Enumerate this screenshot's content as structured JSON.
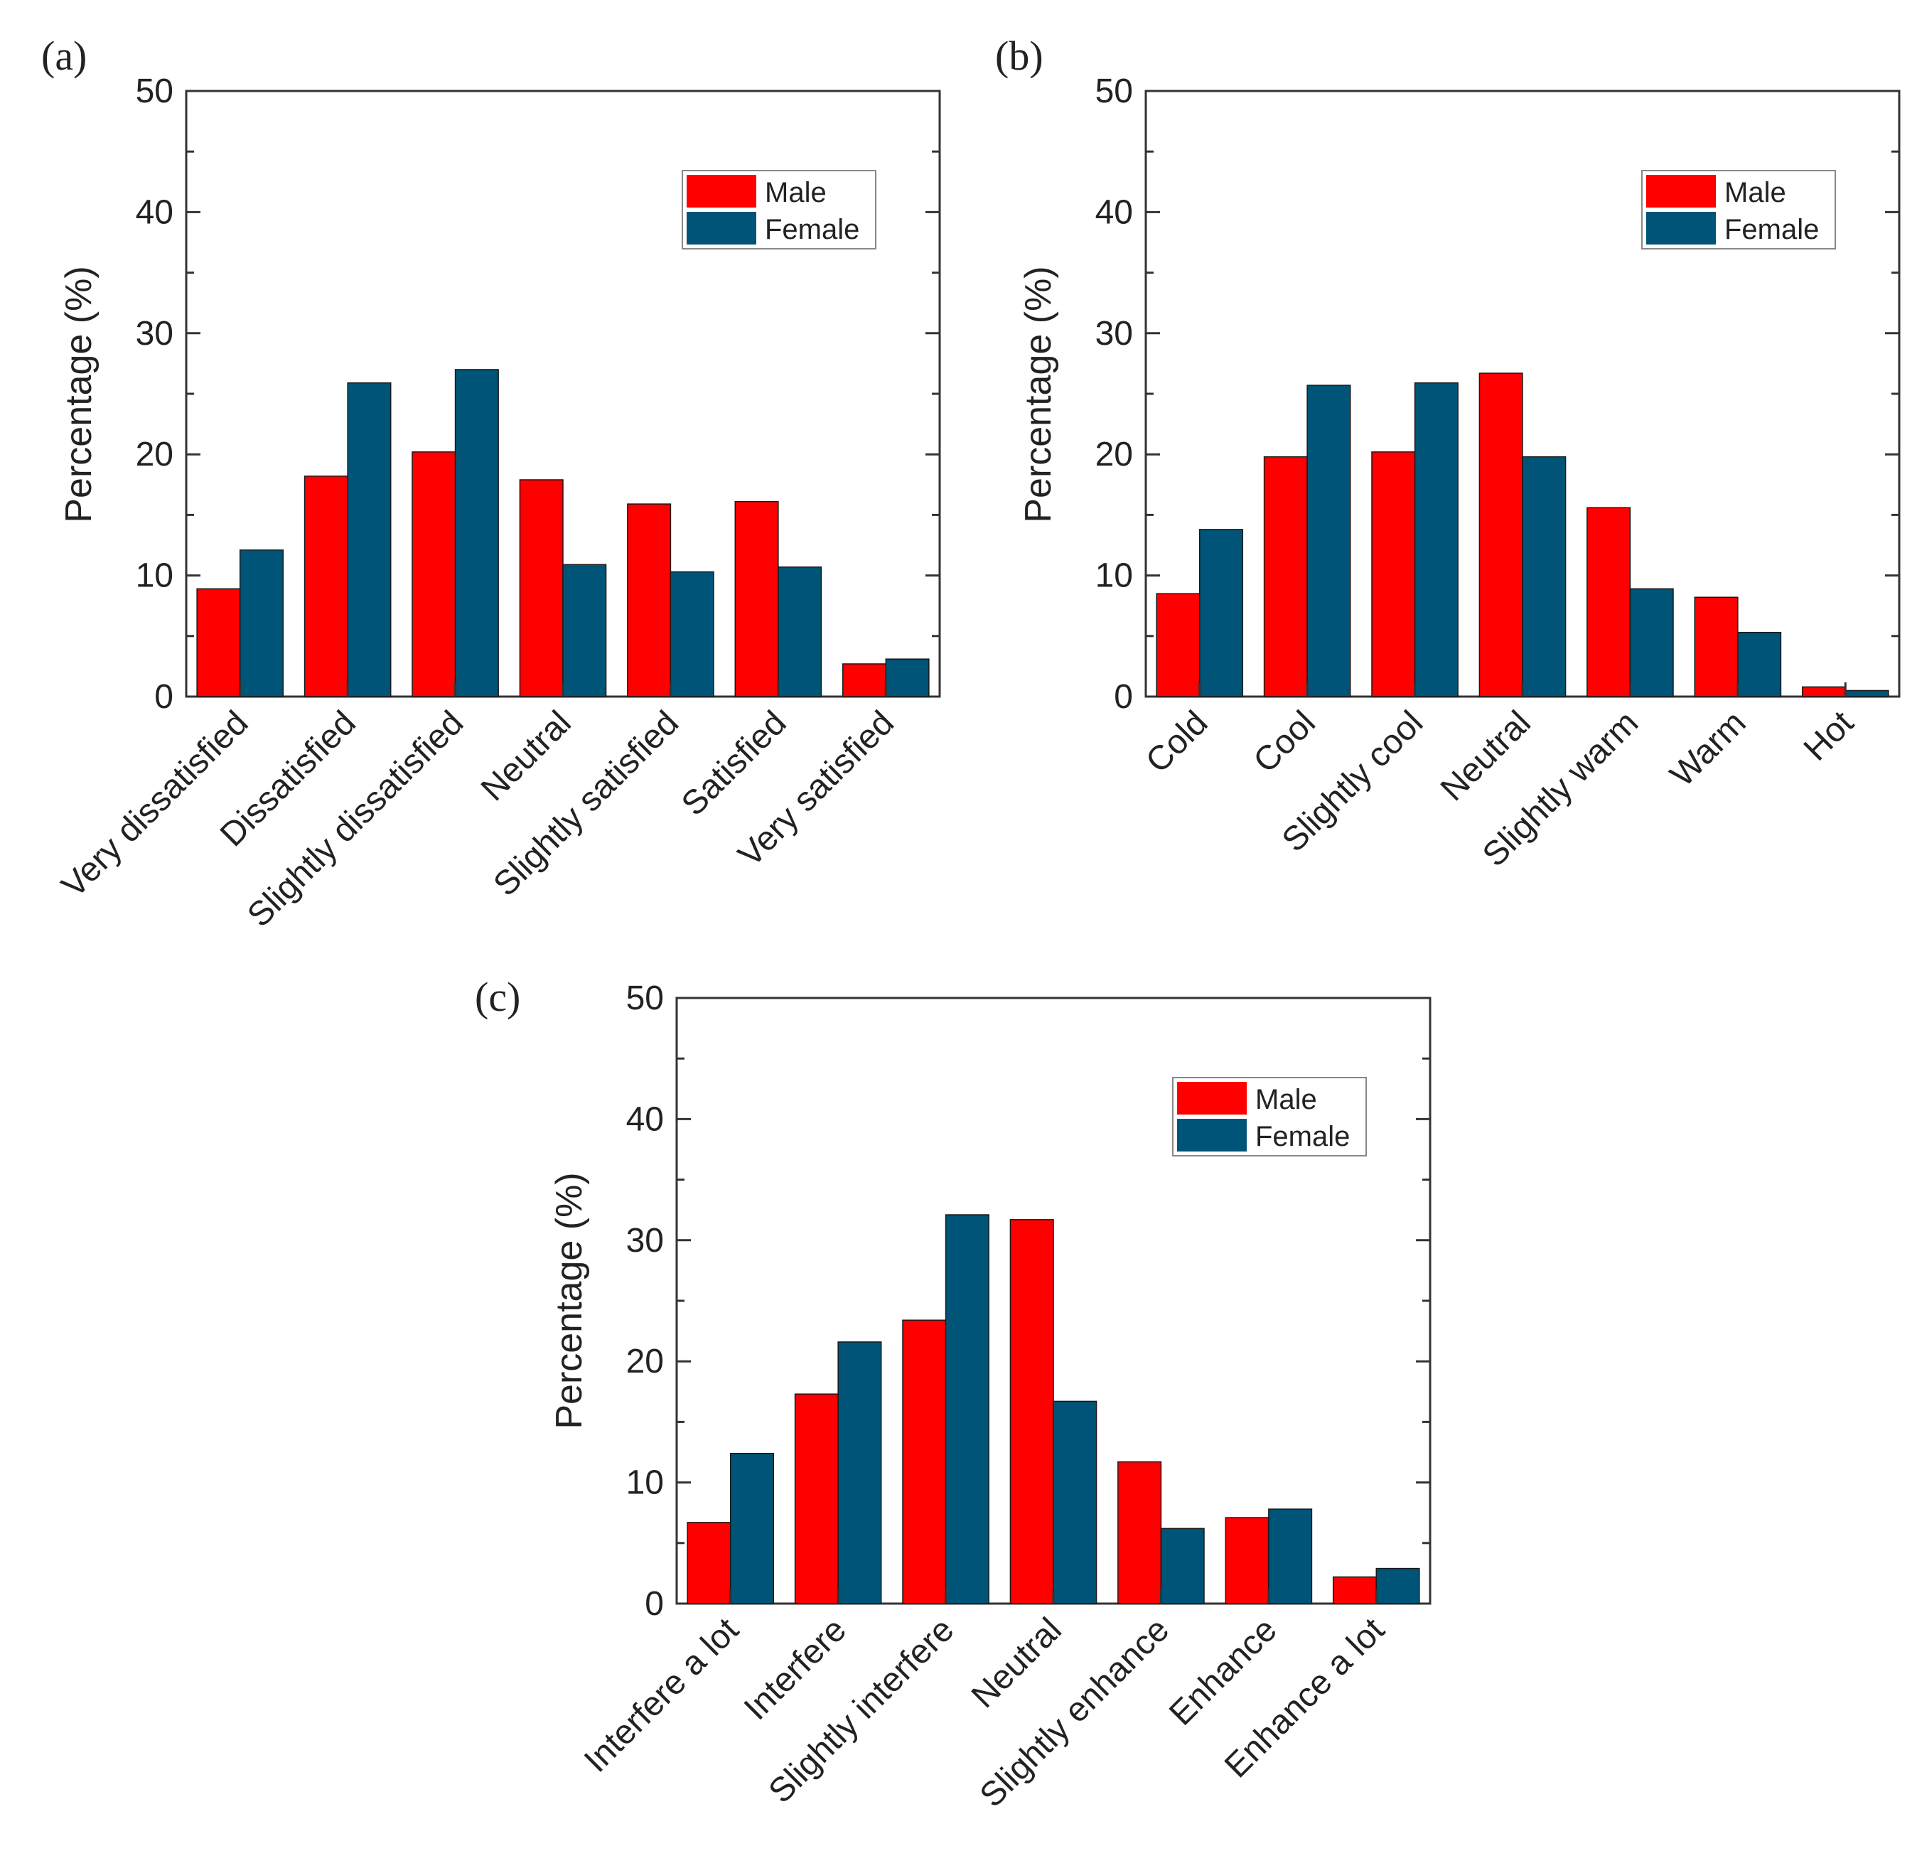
{
  "colors": {
    "male": "#ff0000",
    "female": "#005477",
    "axis": "#333333"
  },
  "chart_data": [
    {
      "id": "a",
      "type": "bar",
      "panel_label": "(a)",
      "ylabel": "Percentage (%)",
      "ylim": [
        0,
        50
      ],
      "yticks": [
        0,
        10,
        20,
        30,
        40,
        50
      ],
      "legend_position": "top-right",
      "categories": [
        "Very dissatisfied",
        "Dissatisfied",
        "Slightly dissatisfied",
        "Neutral",
        "Slightly satisfied",
        "Satisfied",
        "Very satisfied"
      ],
      "series": [
        {
          "name": "Male",
          "values": [
            8.9,
            18.2,
            20.2,
            17.9,
            15.9,
            16.1,
            2.7
          ]
        },
        {
          "name": "Female",
          "values": [
            12.1,
            25.9,
            27.0,
            10.9,
            10.3,
            10.7,
            3.1
          ]
        }
      ]
    },
    {
      "id": "b",
      "type": "bar",
      "panel_label": "(b)",
      "ylabel": "Percentage (%)",
      "ylim": [
        0,
        50
      ],
      "yticks": [
        0,
        10,
        20,
        30,
        40,
        50
      ],
      "legend_position": "top-right",
      "categories": [
        "Cold",
        "Cool",
        "Slightly cool",
        "Neutral",
        "Slightly warm",
        "Warm",
        "Hot"
      ],
      "series": [
        {
          "name": "Male",
          "values": [
            8.5,
            19.8,
            20.2,
            26.7,
            15.6,
            8.2,
            0.8
          ]
        },
        {
          "name": "Female",
          "values": [
            13.8,
            25.7,
            25.9,
            19.8,
            8.9,
            5.3,
            0.5
          ]
        }
      ]
    },
    {
      "id": "c",
      "type": "bar",
      "panel_label": "(c)",
      "ylabel": "Percentage (%)",
      "ylim": [
        0,
        50
      ],
      "yticks": [
        0,
        10,
        20,
        30,
        40,
        50
      ],
      "legend_position": "top-right",
      "categories": [
        "Interfere a lot",
        "Interfere",
        "Slightly interfere",
        "Neutral",
        "Slightly enhance",
        "Enhance",
        "Enhance a lot"
      ],
      "series": [
        {
          "name": "Male",
          "values": [
            6.7,
            17.3,
            23.4,
            31.7,
            11.7,
            7.1,
            2.2
          ]
        },
        {
          "name": "Female",
          "values": [
            12.4,
            21.6,
            32.1,
            16.7,
            6.2,
            7.8,
            2.9
          ]
        }
      ]
    }
  ]
}
